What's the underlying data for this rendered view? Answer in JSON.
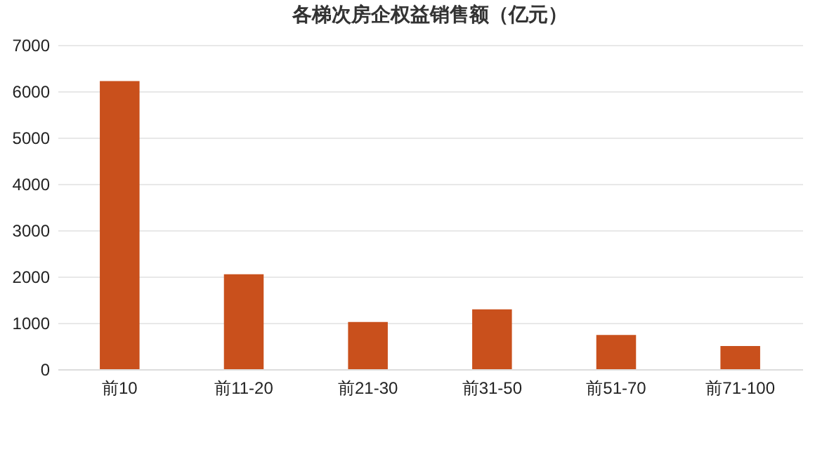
{
  "chart_data": {
    "type": "bar",
    "title": "各梯次房企权益销售额（亿元）",
    "categories": [
      "前10",
      "前11-20",
      "前21-30",
      "前31-50",
      "前51-70",
      "前71-100"
    ],
    "values": [
      6220,
      2050,
      1020,
      1290,
      740,
      500
    ],
    "color": "#c9501c",
    "ylim": [
      0,
      7000
    ],
    "yticks": [
      0,
      1000,
      2000,
      3000,
      4000,
      5000,
      6000,
      7000
    ],
    "grid": "y"
  }
}
